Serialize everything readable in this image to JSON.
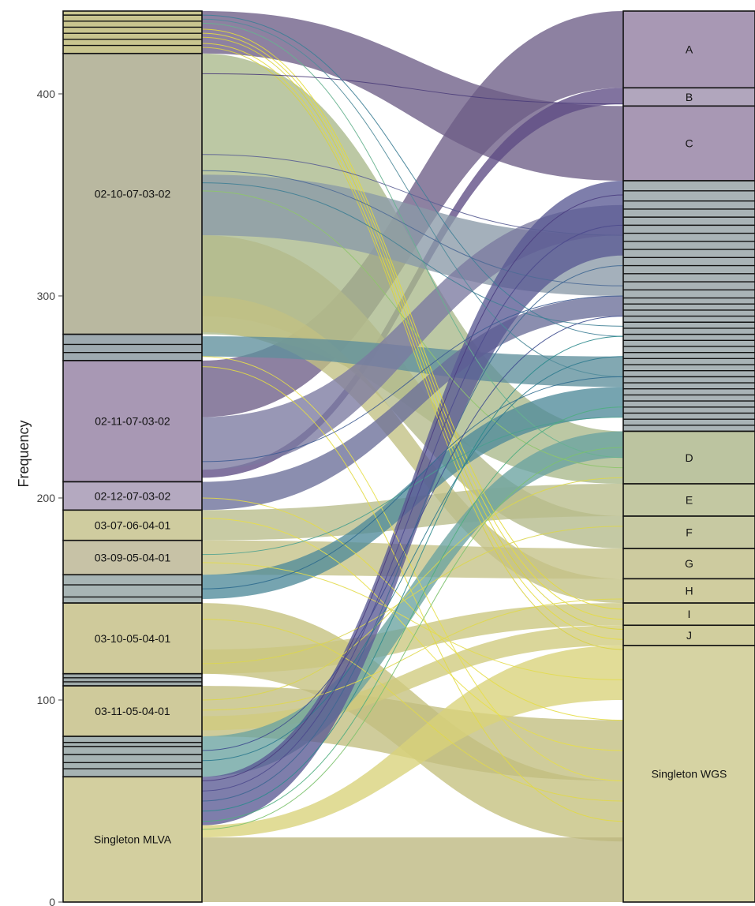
{
  "chart_data": {
    "type": "alluvial",
    "title": "",
    "xlabel": "",
    "ylabel": "Frequency",
    "ylim": [
      0,
      441
    ],
    "yticks": [
      0,
      100,
      200,
      300,
      400
    ],
    "axes": [
      "MLVA",
      "WGS"
    ],
    "colors": {
      "purple": "#8e7ba1",
      "purple_dark": "#6d5d86",
      "teal": "#97aab4",
      "green": "#a9b88a",
      "olive": "#bfb889",
      "yellow": "#e8e160",
      "stroke": "#111111"
    },
    "mlva_strata": [
      {
        "label": "",
        "from": 420,
        "to": 441,
        "color": "#c9c58f"
      },
      {
        "label": "02-10-07-03-02",
        "from": 281,
        "to": 420,
        "color": "#b9b8a0"
      },
      {
        "label": "",
        "from": 268,
        "to": 281,
        "color": "#9eaab0"
      },
      {
        "label": "02-11-07-03-02",
        "from": 208,
        "to": 268,
        "color": "#a898b4"
      },
      {
        "label": "02-12-07-03-02",
        "from": 194,
        "to": 208,
        "color": "#b4a9c0"
      },
      {
        "label": "03-07-06-04-01",
        "from": 179,
        "to": 194,
        "color": "#cfcc9f"
      },
      {
        "label": "03-09-05-04-01",
        "from": 162,
        "to": 179,
        "color": "#c7c2a6"
      },
      {
        "label": "",
        "from": 148,
        "to": 162,
        "color": "#a8b5b5"
      },
      {
        "label": "03-10-05-04-01",
        "from": 113,
        "to": 148,
        "color": "#cfca9b"
      },
      {
        "label": "",
        "from": 107,
        "to": 113,
        "color": "#9ea9a9"
      },
      {
        "label": "03-11-05-04-01",
        "from": 82,
        "to": 107,
        "color": "#cfca9b"
      },
      {
        "label": "",
        "from": 62,
        "to": 82,
        "color": "#a6b3b3"
      },
      {
        "label": "Singleton MLVA",
        "from": 0,
        "to": 62,
        "color": "#d3cf9f"
      }
    ],
    "wgs_strata": [
      {
        "label": "A",
        "from": 403,
        "to": 441,
        "color": "#a898b4"
      },
      {
        "label": "B",
        "from": 394,
        "to": 403,
        "color": "#b1a6bd"
      },
      {
        "label": "C",
        "from": 357,
        "to": 394,
        "color": "#a898b4"
      },
      {
        "label": "",
        "from": 233,
        "to": 357,
        "color": "#a9b3b6"
      },
      {
        "label": "D",
        "from": 207,
        "to": 233,
        "color": "#bcc4a0"
      },
      {
        "label": "E",
        "from": 191,
        "to": 207,
        "color": "#c3c8a2"
      },
      {
        "label": "F",
        "from": 175,
        "to": 191,
        "color": "#c7c9a2"
      },
      {
        "label": "G",
        "from": 160,
        "to": 175,
        "color": "#cdcb9f"
      },
      {
        "label": "H",
        "from": 148,
        "to": 160,
        "color": "#d0cd9f"
      },
      {
        "label": "I",
        "from": 137,
        "to": 148,
        "color": "#d1ce9e"
      },
      {
        "label": "J",
        "from": 127,
        "to": 137,
        "color": "#d1ce9e"
      },
      {
        "label": "Singleton WGS",
        "from": 0,
        "to": 127,
        "color": "#d6d3a3"
      }
    ],
    "mlva_minor_dividers": [
      424,
      427,
      430,
      433,
      436,
      439,
      272,
      276,
      157,
      151,
      109,
      111,
      73,
      77,
      79,
      66,
      69
    ],
    "wgs_minor_dividers": [
      352,
      347,
      343,
      339,
      335,
      331,
      327,
      323,
      319,
      315,
      311,
      307,
      303,
      299,
      296,
      293,
      290,
      287,
      284,
      281,
      278,
      275,
      272,
      269,
      266,
      263,
      260,
      257,
      254,
      251,
      248,
      245,
      242,
      239,
      236
    ],
    "flows": [
      {
        "from_y": [
          420,
          441
        ],
        "to_y": [
          357,
          394
        ],
        "color": "#6d5d86"
      },
      {
        "from_y": [
          240,
          268
        ],
        "to_y": [
          403,
          441
        ],
        "color": "#6d5d86"
      },
      {
        "from_y": [
          210,
          214
        ],
        "to_y": [
          395,
          403
        ],
        "color": "#5e4c84"
      },
      {
        "from_y": [
          281,
          420
        ],
        "to_y": [
          207,
          233
        ],
        "color": "#a9b88a"
      },
      {
        "from_y": [
          330,
          360
        ],
        "to_y": [
          300,
          330
        ],
        "color": "#8a9aa8"
      },
      {
        "from_y": [
          290,
          330
        ],
        "to_y": [
          175,
          191
        ],
        "color": "#b3ba8a"
      },
      {
        "from_y": [
          282,
          300
        ],
        "to_y": [
          148,
          160
        ],
        "color": "#c2c083"
      },
      {
        "from_y": [
          270,
          280
        ],
        "to_y": [
          255,
          270
        ],
        "color": "#5f8f9c"
      },
      {
        "from_y": [
          214,
          240
        ],
        "to_y": [
          330,
          345
        ],
        "color": "#7b7aa0"
      },
      {
        "from_y": [
          194,
          208
        ],
        "to_y": [
          290,
          300
        ],
        "color": "#6a6e98"
      },
      {
        "from_y": [
          179,
          194
        ],
        "to_y": [
          191,
          207
        ],
        "color": "#b9bd8a"
      },
      {
        "from_y": [
          162,
          179
        ],
        "to_y": [
          160,
          175
        ],
        "color": "#c4c187"
      },
      {
        "from_y": [
          150,
          162
        ],
        "to_y": [
          240,
          255
        ],
        "color": "#4f8b9a"
      },
      {
        "from_y": [
          113,
          148
        ],
        "to_y": [
          30,
          60
        ],
        "color": "#c4c07e"
      },
      {
        "from_y": [
          113,
          125
        ],
        "to_y": [
          137,
          148
        ],
        "color": "#cbc77f"
      },
      {
        "from_y": [
          82,
          107
        ],
        "to_y": [
          60,
          90
        ],
        "color": "#c2be7f"
      },
      {
        "from_y": [
          85,
          92
        ],
        "to_y": [
          127,
          137
        ],
        "color": "#cfca7e"
      },
      {
        "from_y": [
          62,
          82
        ],
        "to_y": [
          220,
          233
        ],
        "color": "#6aa3a0"
      },
      {
        "from_y": [
          38,
          62
        ],
        "to_y": [
          320,
          357
        ],
        "color": "#5a5a94"
      },
      {
        "from_y": [
          0,
          32
        ],
        "to_y": [
          0,
          32
        ],
        "color": "#bdb77f"
      },
      {
        "from_y": [
          32,
          38
        ],
        "to_y": [
          100,
          127
        ],
        "color": "#d8d27a"
      }
    ],
    "thread_lines": [
      {
        "from_y": 432,
        "to_y": 145,
        "color": "#e3da3a"
      },
      {
        "from_y": 430,
        "to_y": 140,
        "color": "#e6dd3f"
      },
      {
        "from_y": 428,
        "to_y": 135,
        "color": "#dcd43a"
      },
      {
        "from_y": 425,
        "to_y": 130,
        "color": "#e5dc3c"
      },
      {
        "from_y": 423,
        "to_y": 125,
        "color": "#d9d243"
      },
      {
        "from_y": 437,
        "to_y": 260,
        "color": "#4f8b9a"
      },
      {
        "from_y": 439,
        "to_y": 280,
        "color": "#3d7e96"
      },
      {
        "from_y": 435,
        "to_y": 220,
        "color": "#66b28f"
      },
      {
        "from_y": 410,
        "to_y": 395,
        "color": "#4b3d7a"
      },
      {
        "from_y": 370,
        "to_y": 330,
        "color": "#5a5e94"
      },
      {
        "from_y": 362,
        "to_y": 305,
        "color": "#4d6a96"
      },
      {
        "from_y": 356,
        "to_y": 285,
        "color": "#3f7f95"
      },
      {
        "from_y": 352,
        "to_y": 215,
        "color": "#8fc56b"
      },
      {
        "from_y": 270,
        "to_y": 60,
        "color": "#e7df4a"
      },
      {
        "from_y": 265,
        "to_y": 40,
        "color": "#e2da44"
      },
      {
        "from_y": 218,
        "to_y": 300,
        "color": "#3e5b92"
      },
      {
        "from_y": 200,
        "to_y": 90,
        "color": "#e6dd46"
      },
      {
        "from_y": 190,
        "to_y": 75,
        "color": "#e8df49"
      },
      {
        "from_y": 172,
        "to_y": 240,
        "color": "#49a08f"
      },
      {
        "from_y": 168,
        "to_y": 110,
        "color": "#e3dc4d"
      },
      {
        "from_y": 155,
        "to_y": 260,
        "color": "#2f6b8e"
      },
      {
        "from_y": 140,
        "to_y": 50,
        "color": "#e0d84c"
      },
      {
        "from_y": 118,
        "to_y": 186,
        "color": "#dcd650"
      },
      {
        "from_y": 100,
        "to_y": 210,
        "color": "#dcd74b"
      },
      {
        "from_y": 95,
        "to_y": 150,
        "color": "#e0d84c"
      },
      {
        "from_y": 75,
        "to_y": 290,
        "color": "#3e4d8e"
      },
      {
        "from_y": 70,
        "to_y": 270,
        "color": "#2e7a8e"
      },
      {
        "from_y": 60,
        "to_y": 350,
        "color": "#4a3d80"
      },
      {
        "from_y": 55,
        "to_y": 335,
        "color": "#4c4a8d"
      },
      {
        "from_y": 50,
        "to_y": 315,
        "color": "#3e6792"
      },
      {
        "from_y": 45,
        "to_y": 280,
        "color": "#2c8a8d"
      },
      {
        "from_y": 40,
        "to_y": 245,
        "color": "#4fae7f"
      },
      {
        "from_y": 36,
        "to_y": 225,
        "color": "#7cc26d"
      }
    ]
  }
}
